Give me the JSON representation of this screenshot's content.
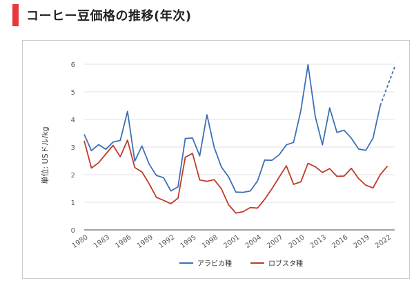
{
  "header": {
    "title": "コーヒー豆価格の推移(年次)",
    "accent_color": "#e8383d"
  },
  "chart_data": {
    "type": "line",
    "title": "",
    "xlabel": "",
    "ylabel": "単位: USドル/kg",
    "ylim": [
      0,
      6
    ],
    "xlim": [
      1980,
      2023
    ],
    "yticks": [
      "0",
      "1",
      "2",
      "3",
      "4",
      "5",
      "6"
    ],
    "xticks": [
      "1980",
      "1983",
      "1986",
      "1989",
      "1992",
      "1995",
      "1998",
      "2001",
      "2004",
      "2007",
      "2010",
      "2013",
      "2016",
      "2019",
      "2022"
    ],
    "grid": true,
    "legend": "bottom",
    "series": [
      {
        "name": "アラビカ種",
        "color": "#3d6fb6",
        "x": [
          1980,
          1981,
          1982,
          1983,
          1984,
          1985,
          1986,
          1987,
          1988,
          1989,
          1990,
          1991,
          1992,
          1993,
          1994,
          1995,
          1996,
          1997,
          1998,
          1999,
          2000,
          2001,
          2002,
          2003,
          2004,
          2005,
          2006,
          2007,
          2008,
          2009,
          2010,
          2011,
          2012,
          2013,
          2014,
          2015,
          2016,
          2017,
          2018,
          2019,
          2020,
          2021
        ],
        "y": [
          3.46,
          2.87,
          3.09,
          2.92,
          3.18,
          3.24,
          4.29,
          2.49,
          3.04,
          2.38,
          1.97,
          1.89,
          1.41,
          1.56,
          3.31,
          3.33,
          2.68,
          4.17,
          2.99,
          2.28,
          1.92,
          1.37,
          1.36,
          1.41,
          1.77,
          2.53,
          2.52,
          2.72,
          3.08,
          3.17,
          4.32,
          5.98,
          4.11,
          3.08,
          4.42,
          3.53,
          3.61,
          3.32,
          2.93,
          2.88,
          3.32,
          4.5
        ],
        "forecast": {
          "x": [
            2021,
            2023
          ],
          "y": [
            4.5,
            5.9
          ]
        }
      },
      {
        "name": "ロブスタ種",
        "color": "#c0392b",
        "x": [
          1980,
          1981,
          1982,
          1983,
          1984,
          1985,
          1986,
          1987,
          1988,
          1989,
          1990,
          1991,
          1992,
          1993,
          1994,
          1995,
          1996,
          1997,
          1998,
          1999,
          2000,
          2001,
          2002,
          2003,
          2004,
          2005,
          2006,
          2007,
          2008,
          2009,
          2010,
          2011,
          2012,
          2013,
          2014,
          2015,
          2016,
          2017,
          2018,
          2019,
          2020,
          2021,
          2022
        ],
        "y": [
          3.23,
          2.24,
          2.43,
          2.75,
          3.06,
          2.65,
          3.25,
          2.26,
          2.1,
          1.67,
          1.18,
          1.07,
          0.95,
          1.15,
          2.63,
          2.77,
          1.81,
          1.76,
          1.82,
          1.49,
          0.91,
          0.61,
          0.66,
          0.81,
          0.79,
          1.11,
          1.49,
          1.91,
          2.32,
          1.65,
          1.74,
          2.41,
          2.29,
          2.08,
          2.22,
          1.94,
          1.95,
          2.23,
          1.86,
          1.62,
          1.52,
          2.0,
          2.31
        ]
      }
    ]
  }
}
